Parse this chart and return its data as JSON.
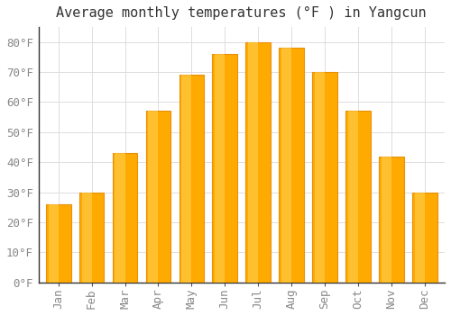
{
  "title": "Average monthly temperatures (°F ) in Yangcun",
  "months": [
    "Jan",
    "Feb",
    "Mar",
    "Apr",
    "May",
    "Jun",
    "Jul",
    "Aug",
    "Sep",
    "Oct",
    "Nov",
    "Dec"
  ],
  "values": [
    26,
    30,
    43,
    57,
    69,
    76,
    80,
    78,
    70,
    57,
    42,
    30
  ],
  "bar_color": "#FFAA00",
  "bar_edge_color": "#E8900A",
  "background_color": "#FFFFFF",
  "grid_color": "#DDDDDD",
  "ylim": [
    0,
    85
  ],
  "yticks": [
    0,
    10,
    20,
    30,
    40,
    50,
    60,
    70,
    80
  ],
  "title_fontsize": 11,
  "tick_fontsize": 9,
  "tick_color": "#888888"
}
